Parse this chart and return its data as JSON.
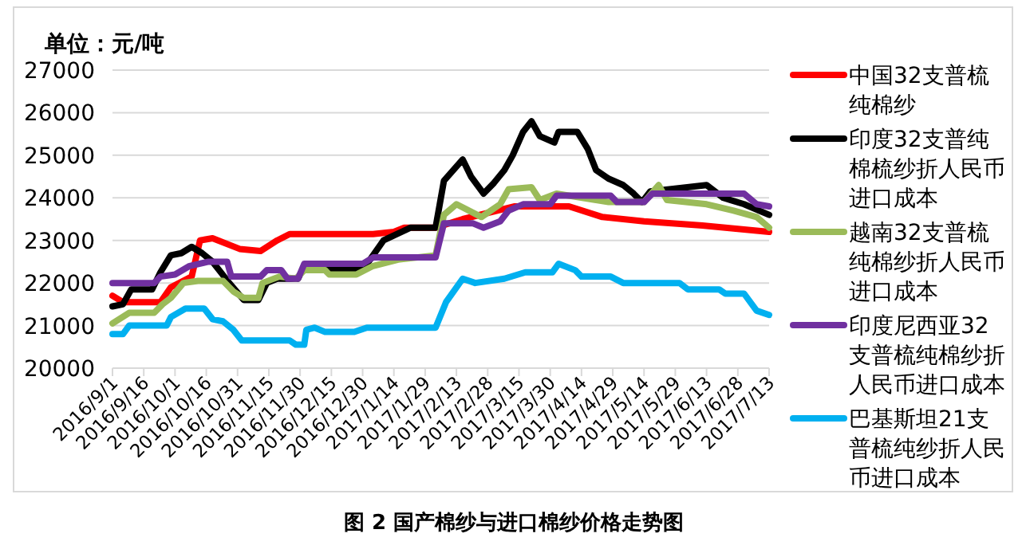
{
  "chart_data": {
    "type": "line",
    "title": "图 2 国产棉纱与进口棉纱价格走势图",
    "ylabel": "单位：元/吨",
    "xlim": [
      "2016-09-01",
      "2017-07-13"
    ],
    "ylim": [
      20000,
      27000
    ],
    "yticks": [
      20000,
      21000,
      22000,
      23000,
      24000,
      25000,
      26000,
      27000
    ],
    "xticks": [
      {
        "value": "2016-09-01",
        "label": "2016/9/1"
      },
      {
        "value": "2016-09-16",
        "label": "2016/9/16"
      },
      {
        "value": "2016-10-01",
        "label": "2016/10/1"
      },
      {
        "value": "2016-10-16",
        "label": "2016/10/16"
      },
      {
        "value": "2016-10-31",
        "label": "2016/10/31"
      },
      {
        "value": "2016-11-15",
        "label": "2016/11/15"
      },
      {
        "value": "2016-11-30",
        "label": "2016/11/30"
      },
      {
        "value": "2016-12-15",
        "label": "2016/12/15"
      },
      {
        "value": "2016-12-30",
        "label": "2016/12/30"
      },
      {
        "value": "2017-01-14",
        "label": "2017/1/14"
      },
      {
        "value": "2017-01-29",
        "label": "2017/1/29"
      },
      {
        "value": "2017-02-13",
        "label": "2017/2/13"
      },
      {
        "value": "2017-02-28",
        "label": "2017/2/28"
      },
      {
        "value": "2017-03-15",
        "label": "2017/3/15"
      },
      {
        "value": "2017-03-30",
        "label": "2017/3/30"
      },
      {
        "value": "2017-04-14",
        "label": "2017/4/14"
      },
      {
        "value": "2017-04-29",
        "label": "2017/4/29"
      },
      {
        "value": "2017-05-14",
        "label": "2017/5/14"
      },
      {
        "value": "2017-05-29",
        "label": "2017/5/29"
      },
      {
        "value": "2017-06-13",
        "label": "2017/6/13"
      },
      {
        "value": "2017-06-28",
        "label": "2017/6/28"
      },
      {
        "value": "2017-07-13",
        "label": "2017/7/13"
      }
    ],
    "grid": "y",
    "legend": "right",
    "marker": "none",
    "line_style": "solid",
    "series": [
      {
        "name": "中国32支普梳纯棉纱",
        "color": "#ff0000",
        "x": [
          "2016-09-01",
          "2016-09-06",
          "2016-09-24",
          "2016-09-29",
          "2016-10-09",
          "2016-10-13",
          "2016-10-19",
          "2016-11-01",
          "2016-11-11",
          "2016-11-19",
          "2016-11-25",
          "2017-01-04",
          "2017-01-14",
          "2017-01-19",
          "2017-02-03",
          "2017-02-16",
          "2017-03-13",
          "2017-04-08",
          "2017-04-24",
          "2017-05-14",
          "2017-06-11",
          "2017-07-13"
        ],
        "values": [
          21700,
          21550,
          21550,
          21900,
          22150,
          23000,
          23050,
          22800,
          22750,
          23000,
          23150,
          23150,
          23200,
          23300,
          23300,
          23500,
          23800,
          23800,
          23550,
          23450,
          23350,
          23200
        ]
      },
      {
        "name": "印度32支普纯棉梳纱折人民币进口成本",
        "color": "#000000",
        "x": [
          "2016-09-01",
          "2016-09-06",
          "2016-09-10",
          "2016-09-20",
          "2016-09-24",
          "2016-09-29",
          "2016-10-04",
          "2016-10-09",
          "2016-10-14",
          "2016-10-19",
          "2016-10-27",
          "2016-11-03",
          "2016-11-10",
          "2016-11-14",
          "2016-11-19",
          "2016-11-29",
          "2016-12-02",
          "2016-12-09",
          "2016-12-30",
          "2017-01-09",
          "2017-01-22",
          "2017-02-03",
          "2017-02-07",
          "2017-02-16",
          "2017-02-20",
          "2017-02-26",
          "2017-03-03",
          "2017-03-08",
          "2017-03-12",
          "2017-03-17",
          "2017-03-21",
          "2017-03-25",
          "2017-04-01",
          "2017-04-03",
          "2017-04-12",
          "2017-04-17",
          "2017-04-21",
          "2017-04-27",
          "2017-05-04",
          "2017-05-09",
          "2017-05-13",
          "2017-05-17",
          "2017-06-13",
          "2017-06-17",
          "2017-06-21",
          "2017-07-01",
          "2017-07-13"
        ],
        "values": [
          21450,
          21500,
          21850,
          21850,
          22250,
          22650,
          22700,
          22850,
          22700,
          22500,
          22000,
          21600,
          21600,
          22000,
          22100,
          22100,
          22400,
          22300,
          22300,
          23000,
          23300,
          23300,
          24400,
          24900,
          24500,
          24100,
          24350,
          24650,
          25000,
          25550,
          25800,
          25450,
          25300,
          25550,
          25550,
          25150,
          24650,
          24450,
          24300,
          24100,
          23900,
          24150,
          24300,
          24150,
          24000,
          23850,
          23600
        ]
      },
      {
        "name": "越南32支普梳纯棉纱折人民币进口成本",
        "color": "#9bbb59",
        "x": [
          "2016-09-01",
          "2016-09-09",
          "2016-09-21",
          "2016-09-25",
          "2016-09-29",
          "2016-10-05",
          "2016-10-12",
          "2016-10-24",
          "2016-10-29",
          "2016-11-03",
          "2016-11-10",
          "2016-11-12",
          "2016-11-20",
          "2016-11-28",
          "2016-12-02",
          "2016-12-12",
          "2016-12-14",
          "2016-12-27",
          "2017-01-04",
          "2017-01-16",
          "2017-02-03",
          "2017-02-07",
          "2017-02-13",
          "2017-02-25",
          "2017-03-06",
          "2017-03-10",
          "2017-03-21",
          "2017-03-25",
          "2017-04-02",
          "2017-04-27",
          "2017-05-14",
          "2017-05-21",
          "2017-05-25",
          "2017-06-13",
          "2017-06-26",
          "2017-07-07",
          "2017-07-13"
        ],
        "values": [
          21050,
          21300,
          21300,
          21500,
          21650,
          22000,
          22050,
          22050,
          21800,
          21650,
          21650,
          22000,
          22150,
          22100,
          22300,
          22300,
          22200,
          22200,
          22400,
          22550,
          22650,
          23600,
          23850,
          23550,
          23850,
          24200,
          24250,
          23950,
          24100,
          23900,
          23900,
          24300,
          23950,
          23850,
          23700,
          23550,
          23300
        ]
      },
      {
        "name": "印度尼西亚32支普梳纯棉纱折人民币进口成本",
        "color": "#7030a0",
        "x": [
          "2016-09-01",
          "2016-09-21",
          "2016-09-24",
          "2016-10-01",
          "2016-10-08",
          "2016-10-17",
          "2016-10-26",
          "2016-10-28",
          "2016-11-11",
          "2016-11-14",
          "2016-11-21",
          "2016-11-24",
          "2016-11-29",
          "2016-12-02",
          "2016-12-30",
          "2017-01-04",
          "2017-02-03",
          "2017-02-07",
          "2017-02-21",
          "2017-02-26",
          "2017-03-06",
          "2017-03-10",
          "2017-03-17",
          "2017-03-30",
          "2017-04-02",
          "2017-04-28",
          "2017-05-01",
          "2017-05-14",
          "2017-05-18",
          "2017-07-01",
          "2017-07-07",
          "2017-07-13"
        ],
        "values": [
          22000,
          22000,
          22150,
          22200,
          22400,
          22500,
          22500,
          22150,
          22150,
          22300,
          22300,
          22100,
          22100,
          22450,
          22450,
          22600,
          22600,
          23400,
          23400,
          23300,
          23450,
          23700,
          23850,
          23850,
          24050,
          24050,
          23900,
          23900,
          24100,
          24100,
          23850,
          23800
        ]
      },
      {
        "name": "巴基斯坦21支普梳纯纱折人民币进口成本",
        "color": "#00b0f0",
        "x": [
          "2016-09-01",
          "2016-09-06",
          "2016-09-09",
          "2016-09-27",
          "2016-09-29",
          "2016-10-06",
          "2016-10-15",
          "2016-10-19",
          "2016-10-24",
          "2016-10-29",
          "2016-11-02",
          "2016-11-25",
          "2016-11-28",
          "2016-12-02",
          "2016-12-03",
          "2016-12-07",
          "2016-12-12",
          "2016-12-26",
          "2017-01-01",
          "2017-02-03",
          "2017-02-08",
          "2017-02-16",
          "2017-02-22",
          "2017-03-08",
          "2017-03-18",
          "2017-03-31",
          "2017-04-03",
          "2017-04-11",
          "2017-04-14",
          "2017-04-28",
          "2017-05-04",
          "2017-05-31",
          "2017-06-04",
          "2017-06-19",
          "2017-06-22",
          "2017-07-01",
          "2017-07-07",
          "2017-07-13"
        ],
        "values": [
          20800,
          20800,
          21000,
          21000,
          21200,
          21400,
          21400,
          21150,
          21100,
          20900,
          20650,
          20650,
          20550,
          20550,
          20900,
          20950,
          20850,
          20850,
          20950,
          20950,
          21550,
          22100,
          22000,
          22100,
          22250,
          22250,
          22450,
          22300,
          22150,
          22150,
          22000,
          22000,
          21850,
          21850,
          21750,
          21750,
          21350,
          21250
        ]
      }
    ]
  }
}
